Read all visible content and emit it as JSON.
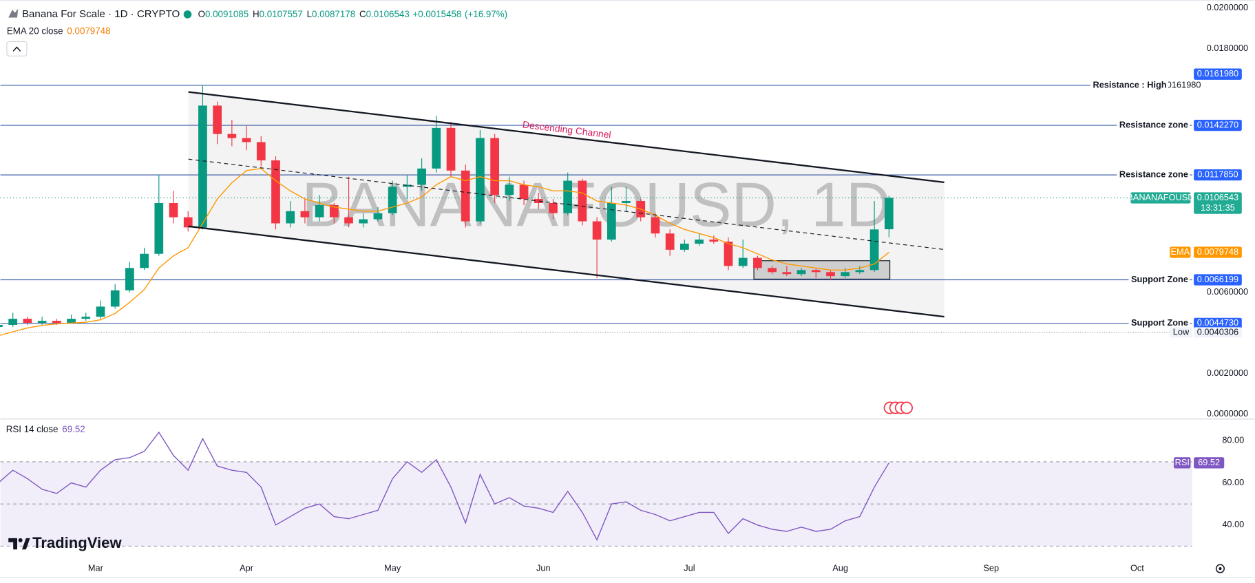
{
  "header": {
    "symbol": "Banana For Scale · 1D · CRYPTO",
    "o": "O",
    "h": "H",
    "l": "L",
    "c": "C",
    "change": "+0.0015458",
    "change_pct": "(+16.97%)",
    "ema_legend": "EMA 20 close",
    "rsi_legend": "RSI 14 close",
    "watermark": "BANANAFOUSD, 1D",
    "logo": "TradingView",
    "ticker_label": "BANANAFOUSD",
    "countdown": "13:31:35"
  },
  "chart_data": [
    {
      "type": "candlestick",
      "annotation": "Descending Channel",
      "x": [
        -20,
        -17,
        -14,
        -11,
        -8,
        -5,
        -2,
        1,
        4,
        7,
        10,
        13,
        16,
        19,
        22,
        25,
        28,
        31,
        34,
        37,
        40,
        43,
        46,
        49,
        52,
        55,
        58,
        61,
        64,
        67,
        70,
        73,
        76,
        79,
        82,
        85,
        88,
        91,
        94,
        97,
        100,
        103,
        106,
        109,
        112,
        115,
        118,
        121,
        124,
        127,
        130,
        133,
        136,
        139,
        142,
        145,
        148,
        151,
        154,
        157,
        160,
        163
      ],
      "xlim": [
        -19.56,
        225.3
      ],
      "xticks": [
        {
          "value": 0,
          "label": "Mar"
        },
        {
          "value": 31,
          "label": "Apr"
        },
        {
          "value": 61,
          "label": "May"
        },
        {
          "value": 92,
          "label": "Jun"
        },
        {
          "value": 122,
          "label": "Jul"
        },
        {
          "value": 153,
          "label": "Aug"
        },
        {
          "value": 184,
          "label": "Sep"
        },
        {
          "value": 214,
          "label": "Oct"
        }
      ],
      "open": [
        0.0043,
        0.0044,
        0.0047,
        0.0045,
        0.0046,
        0.0045,
        0.0047,
        0.0048,
        0.0053,
        0.0061,
        0.0072,
        0.0079,
        0.0104,
        0.0097,
        0.0092,
        0.0152,
        0.0138,
        0.0136,
        0.0134,
        0.0125,
        0.0094,
        0.01,
        0.0097,
        0.0103,
        0.0097,
        0.0094,
        0.0096,
        0.0099,
        0.0112,
        0.0113,
        0.0121,
        0.0141,
        0.012,
        0.0095,
        0.0136,
        0.0108,
        0.0113,
        0.0106,
        0.0104,
        0.0099,
        0.0115,
        0.0095,
        0.0086,
        0.0104,
        0.0105,
        0.0097,
        0.0089,
        0.0081,
        0.0084,
        0.0086,
        0.0085,
        0.0073,
        0.0077,
        0.0072,
        0.007,
        0.0069,
        0.0071,
        0.007,
        0.0068,
        0.007,
        0.0071,
        0.0091085
      ],
      "high": [
        0.0045,
        0.005,
        0.0048,
        0.0048,
        0.0047,
        0.0049,
        0.005,
        0.0056,
        0.0064,
        0.0075,
        0.0082,
        0.0118,
        0.011,
        0.01,
        0.016198,
        0.0154,
        0.0145,
        0.0142,
        0.0137,
        0.0127,
        0.0105,
        0.0106,
        0.0108,
        0.0104,
        0.0117,
        0.0099,
        0.0102,
        0.0115,
        0.0118,
        0.0126,
        0.0147,
        0.0144,
        0.0123,
        0.014,
        0.0138,
        0.0117,
        0.0115,
        0.0109,
        0.0106,
        0.0119,
        0.0116,
        0.0097,
        0.0112,
        0.0112,
        0.0106,
        0.0099,
        0.0091,
        0.0086,
        0.0089,
        0.0088,
        0.0087,
        0.0086,
        0.0078,
        0.0073,
        0.0073,
        0.0072,
        0.0072,
        0.0071,
        0.0072,
        0.0073,
        0.0105,
        0.0107557
      ],
      "low": [
        0.0042,
        0.0043,
        0.0044,
        0.0044,
        0.0044,
        0.0045,
        0.0046,
        0.0047,
        0.0052,
        0.006,
        0.0071,
        0.0078,
        0.0094,
        0.009,
        0.0091,
        0.0133,
        0.0132,
        0.013,
        0.0122,
        0.0091,
        0.0092,
        0.0094,
        0.0095,
        0.0094,
        0.0092,
        0.0092,
        0.0095,
        0.0098,
        0.0106,
        0.011,
        0.0119,
        0.0117,
        0.0092,
        0.0094,
        0.0104,
        0.0105,
        0.0103,
        0.0101,
        0.0096,
        0.0098,
        0.0093,
        0.0067,
        0.0085,
        0.01,
        0.0095,
        0.0087,
        0.0078,
        0.008,
        0.0083,
        0.0084,
        0.0071,
        0.0072,
        0.0071,
        0.0069,
        0.0068,
        0.0068,
        0.0067,
        0.0066,
        0.0067,
        0.0069,
        0.007,
        0.0087178
      ],
      "close": [
        0.0044,
        0.0047,
        0.0045,
        0.0046,
        0.0045,
        0.0047,
        0.0048,
        0.0053,
        0.0061,
        0.0072,
        0.0079,
        0.0104,
        0.0097,
        0.0092,
        0.0152,
        0.0138,
        0.0136,
        0.0134,
        0.0125,
        0.0094,
        0.01,
        0.0097,
        0.0103,
        0.0097,
        0.0094,
        0.0096,
        0.0099,
        0.0112,
        0.0113,
        0.0121,
        0.0141,
        0.012,
        0.0095,
        0.0136,
        0.0108,
        0.0113,
        0.0106,
        0.0104,
        0.0099,
        0.0115,
        0.0095,
        0.0086,
        0.0104,
        0.0105,
        0.0097,
        0.0089,
        0.0081,
        0.0084,
        0.0086,
        0.0085,
        0.0073,
        0.0077,
        0.0072,
        0.007,
        0.0069,
        0.0071,
        0.007,
        0.0068,
        0.007,
        0.0071,
        0.0091,
        0.0106543
      ],
      "up_color": "#089981",
      "down_color": "#f23645",
      "ylim": [
        -0.00016,
        0.0204
      ],
      "yticks": [
        {
          "value": 0.02,
          "label": "0.0200000"
        },
        {
          "value": 0.018,
          "label": "0.0180000"
        },
        {
          "value": 0.006,
          "label": "0.0060000"
        },
        {
          "value": 0.002,
          "label": "0.0020000"
        },
        {
          "value": 0,
          "label": "0.0000000"
        }
      ],
      "series": [
        {
          "name": "EMA",
          "color": "#ff9800",
          "values": [
            0.00386,
            0.00406,
            0.00425,
            0.00437,
            0.00445,
            0.00449,
            0.00453,
            0.00465,
            0.00496,
            0.00551,
            0.00614,
            0.0072,
            0.0078,
            0.0082,
            0.0094,
            0.0106,
            0.0114,
            0.012,
            0.0121,
            0.0115,
            0.011,
            0.0106,
            0.0104,
            0.0102,
            0.0101,
            0.01,
            0.01,
            0.0102,
            0.0104,
            0.0107,
            0.0113,
            0.0117,
            0.0115,
            0.0117,
            0.0115,
            0.0115,
            0.0113,
            0.0112,
            0.011,
            0.011,
            0.0109,
            0.0105,
            0.0104,
            0.0103,
            0.0101,
            0.0098,
            0.0094,
            0.0091,
            0.0089,
            0.0087,
            0.0084,
            0.0082,
            0.0079,
            0.0076,
            0.0074,
            0.0073,
            0.0072,
            0.0071,
            0.0071,
            0.0072,
            0.0074,
            0.0079748
          ]
        }
      ],
      "levels": [
        {
          "name": "Resistance : High",
          "value": 0.016198,
          "label": "0.0161980"
        },
        {
          "name": "Resistance zone",
          "value": 0.014227,
          "label": "0.0142270"
        },
        {
          "name": "Resistance zone",
          "value": 0.011785,
          "label": "0.0117850"
        },
        {
          "name": "Support Zone",
          "value": 0.0066199,
          "label": "0.0066199"
        },
        {
          "name": "Support Zone",
          "value": 0.004473,
          "label": "0.0044730"
        }
      ],
      "level_color": "#3f5fa6",
      "label_color": "#2962ff",
      "low_line": {
        "name": "Low",
        "value": 0.0040306,
        "label": "0.0040306"
      }
    },
    {
      "type": "line",
      "x": [
        -20,
        -17,
        -14,
        -11,
        -8,
        -5,
        -2,
        1,
        4,
        7,
        10,
        13,
        16,
        19,
        22,
        25,
        28,
        31,
        34,
        37,
        40,
        43,
        46,
        49,
        52,
        55,
        58,
        61,
        64,
        67,
        70,
        73,
        76,
        79,
        82,
        85,
        88,
        91,
        94,
        97,
        100,
        103,
        106,
        109,
        112,
        115,
        118,
        121,
        124,
        127,
        130,
        133,
        136,
        139,
        142,
        145,
        148,
        151,
        154,
        157,
        160,
        163
      ],
      "xlim": [
        -19.56,
        225.3
      ],
      "ylim": [
        23.5,
        90.3
      ],
      "yticks": [
        {
          "value": 80,
          "label": "80.00"
        },
        {
          "value": 60,
          "label": "60.00"
        },
        {
          "value": 40,
          "label": "40.00"
        }
      ],
      "levels": [
        70,
        50,
        30
      ],
      "series": [
        {
          "name": "RSI",
          "color": "#7e57c2",
          "values": [
            60,
            66,
            62,
            57,
            55,
            60,
            58,
            66,
            71,
            72,
            75,
            84,
            73,
            66,
            81,
            68,
            66,
            65,
            58,
            40,
            44,
            48,
            50,
            44,
            43,
            45,
            47,
            62,
            70,
            65,
            71,
            58,
            41,
            64,
            50,
            53,
            49,
            48,
            46,
            56,
            46,
            33,
            50,
            51,
            47,
            45,
            42,
            44,
            46,
            46,
            36,
            43,
            40,
            38,
            37,
            39,
            37,
            38,
            42,
            44,
            58,
            69.52
          ]
        }
      ]
    }
  ]
}
